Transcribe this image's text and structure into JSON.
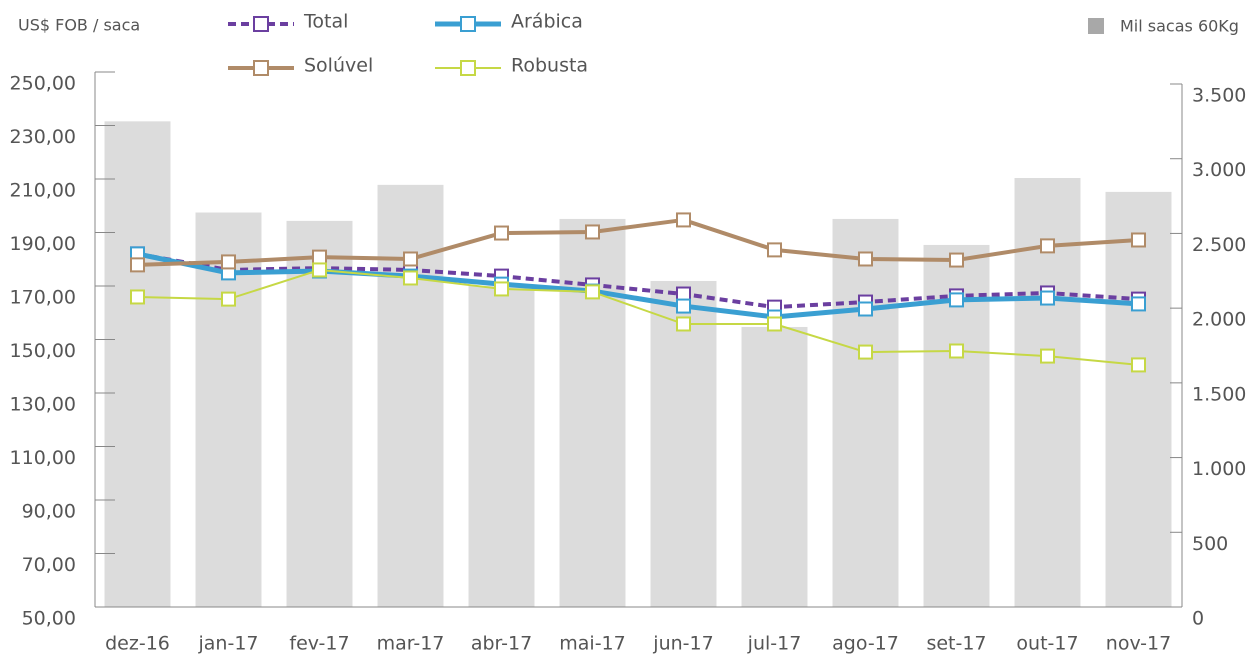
{
  "chart_data": {
    "type": "combo",
    "y_label": "US$ FOB / saca",
    "categories": [
      "dez-16",
      "jan-17",
      "fev-17",
      "mar-17",
      "abr-17",
      "mai-17",
      "jun-17",
      "jul-17",
      "ago-17",
      "set-17",
      "out-17",
      "nov-17"
    ],
    "series": [
      {
        "name": "Mil sacas 60Kg",
        "type": "bar",
        "axis": "y2",
        "color": "#dcdcdc",
        "values": [
          3250,
          2640,
          2584,
          2825,
          2150,
          2597,
          2182,
          1874,
          2597,
          2423,
          2871,
          2778
        ]
      },
      {
        "name": "Total",
        "type": "line",
        "color": "#6b3fa0",
        "line_style": "dashed",
        "line_width": 4,
        "values": [
          182,
          176,
          176.7,
          176,
          173.7,
          170.4,
          167,
          162.1,
          164,
          166.3,
          167.4,
          165.1
        ]
      },
      {
        "name": "Arábica",
        "type": "line",
        "color": "#3a9fd2",
        "line_style": "solid",
        "line_width": 5,
        "values": [
          182,
          174.9,
          175.6,
          173.7,
          170.7,
          168.1,
          162.5,
          158.4,
          161.4,
          164.8,
          165.5,
          163.3
        ]
      },
      {
        "name": "Solúvel",
        "type": "line",
        "color": "#b08b68",
        "line_style": "solid",
        "line_width": 4,
        "values": [
          177.9,
          179,
          180.8,
          180.1,
          189.8,
          190.2,
          194.7,
          183.5,
          180.1,
          179.7,
          185,
          187.2
        ]
      },
      {
        "name": "Robusta",
        "type": "line",
        "color": "#c6d845",
        "line_style": "solid",
        "line_width": 2,
        "values": [
          165.9,
          165.1,
          176,
          173,
          168.9,
          167.8,
          155.8,
          155.8,
          145.3,
          145.7,
          143.8,
          140.5
        ]
      }
    ],
    "ylim": [
      50,
      250
    ],
    "yticks": [
      {
        "value": 50,
        "label": "50,00"
      },
      {
        "value": 70,
        "label": "70,00"
      },
      {
        "value": 90,
        "label": "90,00"
      },
      {
        "value": 110,
        "label": "110,00"
      },
      {
        "value": 130,
        "label": "130,00"
      },
      {
        "value": 150,
        "label": "150,00"
      },
      {
        "value": 170,
        "label": "170,00"
      },
      {
        "value": 190,
        "label": "190,00"
      },
      {
        "value": 210,
        "label": "210,00"
      },
      {
        "value": 230,
        "label": "230,00"
      },
      {
        "value": 250,
        "label": "250,00"
      }
    ],
    "y2lim": [
      0,
      3500
    ],
    "y2ticks": [
      0,
      500,
      {
        "value": 1000,
        "label": "1.000"
      },
      {
        "value": 1500,
        "label": "1.500"
      },
      {
        "value": 2000,
        "label": "2.000"
      },
      {
        "value": 2500,
        "label": "2.500"
      },
      {
        "value": 3000,
        "label": "3.000"
      },
      {
        "value": 3500,
        "label": "3.500"
      }
    ],
    "grid": false
  }
}
